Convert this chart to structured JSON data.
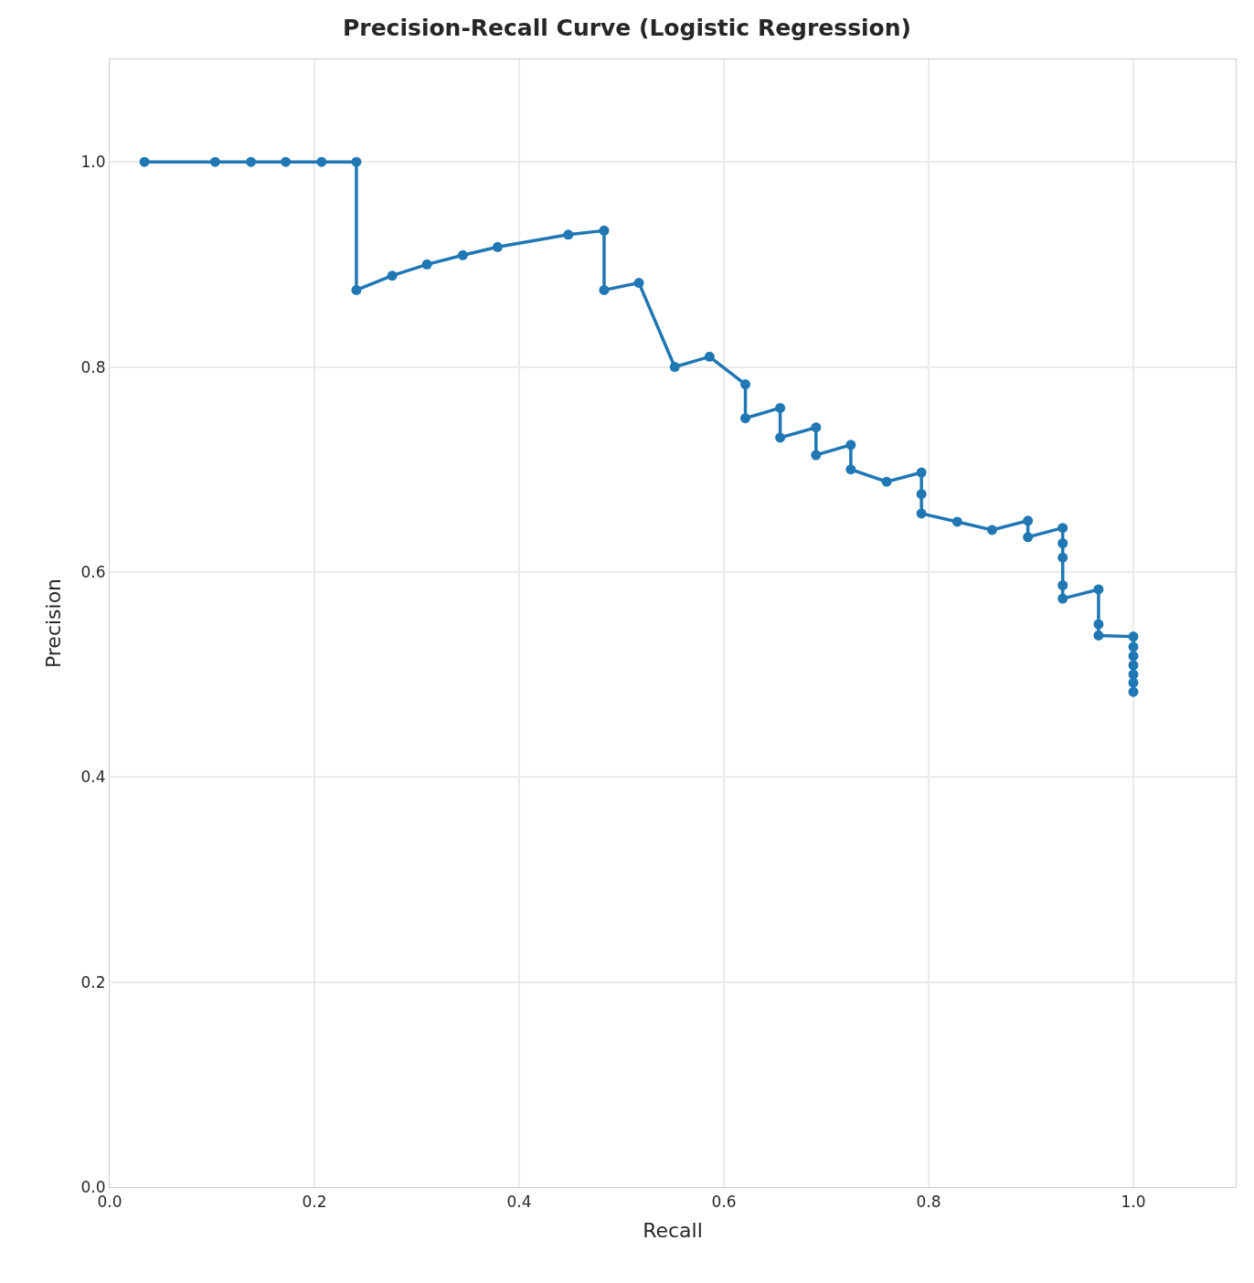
{
  "chart_data": {
    "type": "line",
    "title": "Precision-Recall Curve (Logistic Regression)",
    "xlabel": "Recall",
    "ylabel": "Precision",
    "series": [
      {
        "color": "#1f77b4",
        "x": [
          0.034,
          0.103,
          0.138,
          0.172,
          0.207,
          0.241,
          0.241,
          0.276,
          0.31,
          0.345,
          0.379,
          0.448,
          0.483,
          0.483,
          0.517,
          0.552,
          0.586,
          0.621,
          0.621,
          0.655,
          0.655,
          0.69,
          0.69,
          0.724,
          0.724,
          0.759,
          0.793,
          0.793,
          0.793,
          0.828,
          0.862,
          0.897,
          0.897,
          0.931,
          0.931,
          0.931,
          0.931,
          0.931,
          0.966,
          0.966,
          0.966,
          1.0,
          1.0,
          1.0,
          1.0,
          1.0,
          1.0,
          1.0
        ],
        "values": [
          1.0,
          1.0,
          1.0,
          1.0,
          1.0,
          1.0,
          0.875,
          0.889,
          0.9,
          0.909,
          0.917,
          0.929,
          0.933,
          0.875,
          0.882,
          0.8,
          0.81,
          0.783,
          0.75,
          0.76,
          0.731,
          0.741,
          0.714,
          0.724,
          0.7,
          0.688,
          0.697,
          0.676,
          0.657,
          0.649,
          0.641,
          0.65,
          0.634,
          0.643,
          0.628,
          0.614,
          0.587,
          0.574,
          0.583,
          0.549,
          0.538,
          0.537,
          0.527,
          0.518,
          0.509,
          0.5,
          0.492,
          0.483
        ]
      }
    ],
    "xlim": [
      0,
      1.1
    ],
    "ylim": [
      0,
      1.1
    ],
    "xticks": [
      {
        "value": 0,
        "label": "0.0"
      },
      0.2,
      0.4,
      0.6,
      0.8,
      {
        "value": 1,
        "label": "1.0"
      }
    ],
    "yticks": [
      {
        "value": 0,
        "label": "0.0"
      },
      0.2,
      0.4,
      0.6,
      0.8,
      {
        "value": 1,
        "label": "1.0"
      }
    ],
    "grid": true,
    "marker": "circle",
    "line_style": "solid"
  }
}
